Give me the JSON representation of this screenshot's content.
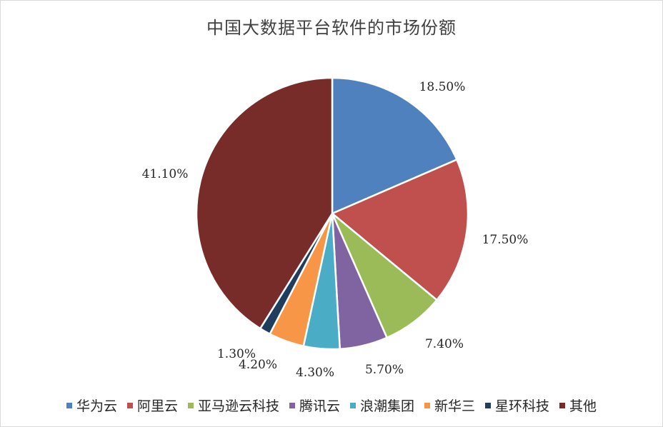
{
  "chart_data": {
    "type": "pie",
    "title": "中国大数据平台软件的市场份额",
    "categories": [
      "华为云",
      "阿里云",
      "亚马逊云科技",
      "腾讯云",
      "浪潮集团",
      "新华三",
      "星环科技",
      "其他"
    ],
    "values": [
      18.5,
      17.5,
      7.4,
      5.7,
      4.3,
      4.2,
      1.3,
      41.1
    ],
    "data_labels": [
      "18.50%",
      "17.50%",
      "7.40%",
      "5.70%",
      "4.30%",
      "4.20%",
      "1.30%",
      "41.10%"
    ],
    "colors": [
      "#4e81bd",
      "#c0504e",
      "#9bbb59",
      "#8064a2",
      "#4bacc6",
      "#f79646",
      "#1f3d5c",
      "#772c2a"
    ],
    "start_angle": "12 o'clock",
    "direction": "clockwise",
    "legend_position": "bottom"
  }
}
